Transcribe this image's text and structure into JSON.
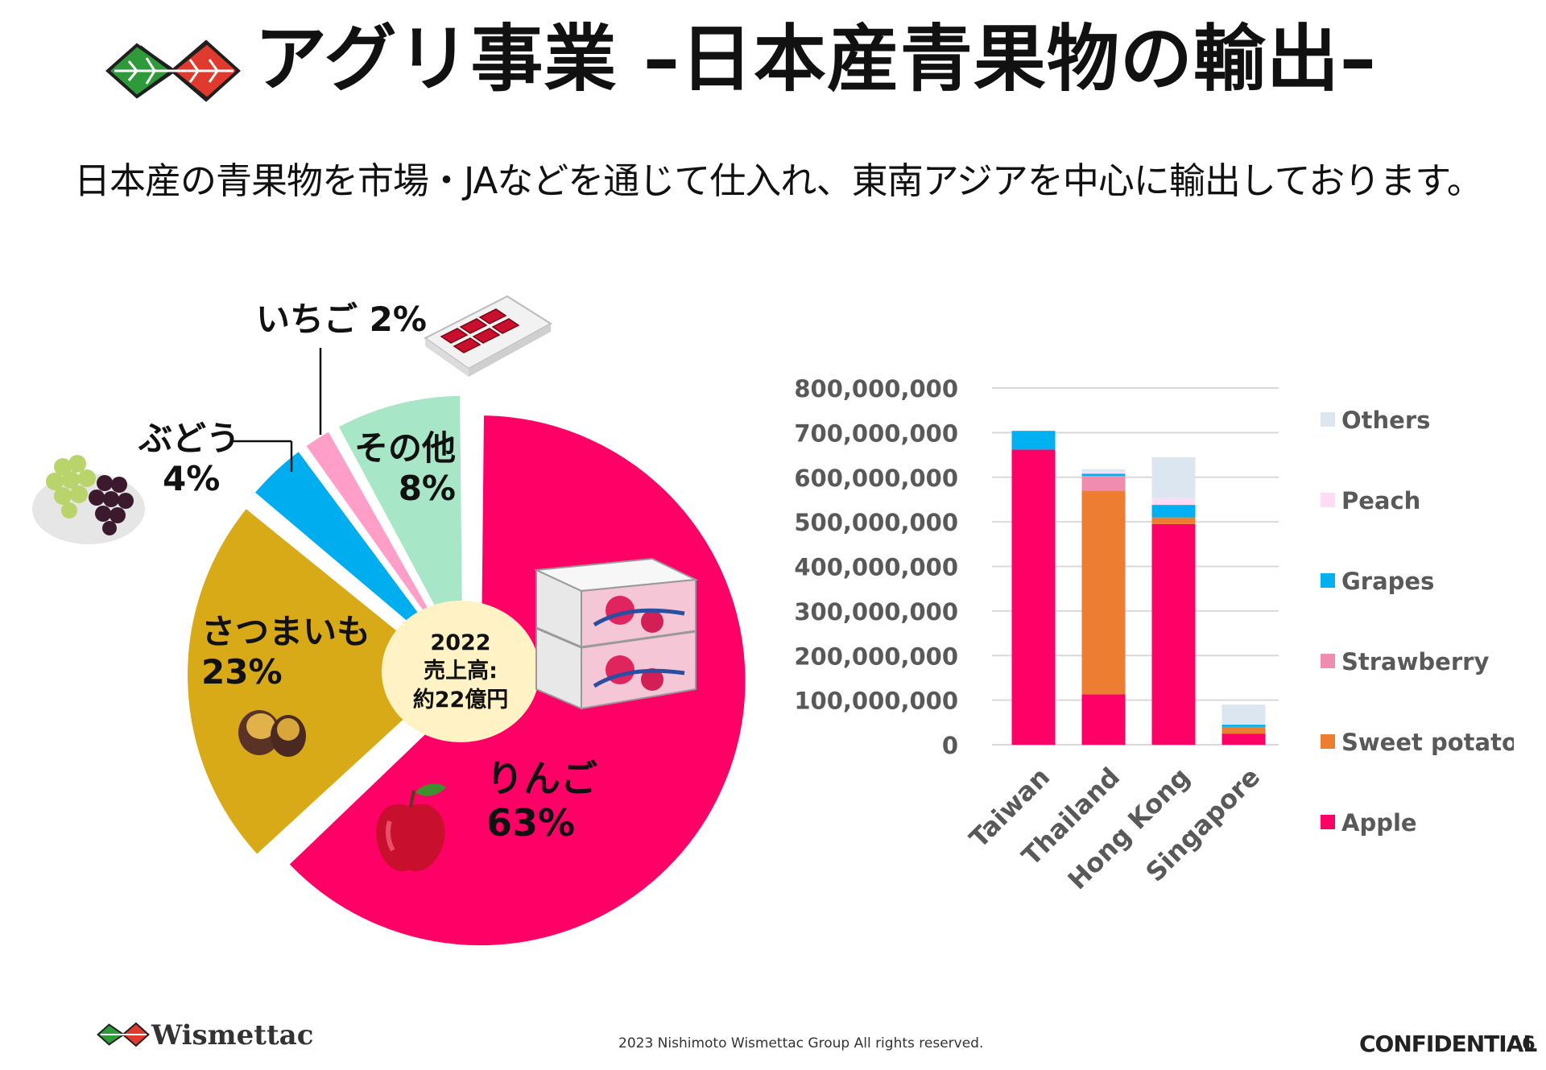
{
  "header": {
    "title": "アグリ事業 –日本産青果物の輸出–",
    "subtitle": "日本産の青果物を市場・JAなどを通じて仕入れ、東南アジアを中心に輸出しております。"
  },
  "pie": {
    "center_lines": [
      "2022",
      "売上高:",
      "約22億円"
    ],
    "slices": [
      {
        "key": "apple",
        "name": "りんご",
        "pct_label": "63%",
        "value": 63,
        "color": "#ff0066"
      },
      {
        "key": "sweetpotato",
        "name": "さつまいも",
        "pct_label": "23%",
        "value": 23,
        "color": "#d9aa17"
      },
      {
        "key": "grapes",
        "name": "ぶどう",
        "pct_label": "4%",
        "value": 4,
        "color": "#00aeef"
      },
      {
        "key": "strawberry",
        "name": "いちご",
        "pct_label": "2%",
        "value": 2,
        "color": "#ff9ec8"
      },
      {
        "key": "other",
        "name": "その他",
        "pct_label": "8%",
        "value": 8,
        "color": "#a8e6c8"
      }
    ]
  },
  "chart_data": [
    {
      "type": "pie",
      "categories": [
        "りんご",
        "さつまいも",
        "ぶどう",
        "いちご",
        "その他"
      ],
      "values": [
        63,
        23,
        4,
        2,
        8
      ],
      "center_text": [
        "2022",
        "売上高:",
        "約22億円"
      ]
    },
    {
      "type": "bar",
      "stacked": true,
      "categories": [
        "Taiwan",
        "Thailand",
        "Hong Kong",
        "Singapore"
      ],
      "ylim": [
        0,
        800000000
      ],
      "yticks": [
        0,
        100000000,
        200000000,
        300000000,
        400000000,
        500000000,
        600000000,
        700000000,
        800000000
      ],
      "ytick_labels": [
        "0",
        "100,000,000",
        "200,000,000",
        "300,000,000",
        "400,000,000",
        "500,000,000",
        "600,000,000",
        "700,000,000",
        "800,000,000"
      ],
      "grid": true,
      "legend_position": "right",
      "series": [
        {
          "name": "Apple",
          "color": "#ff0066",
          "values": [
            662000000,
            113000000,
            495000000,
            25000000
          ]
        },
        {
          "name": "Sweet potato",
          "color": "#ed7d31",
          "values": [
            0,
            457000000,
            15000000,
            15000000
          ]
        },
        {
          "name": "Strawberry",
          "color": "#f08cb0",
          "values": [
            0,
            33000000,
            0,
            0
          ]
        },
        {
          "name": "Grapes",
          "color": "#00b0f0",
          "values": [
            42000000,
            5000000,
            28000000,
            5000000
          ]
        },
        {
          "name": "Peach",
          "color": "#fddcf4",
          "values": [
            0,
            5000000,
            15000000,
            0
          ]
        },
        {
          "name": "Others",
          "color": "#dce6f1",
          "values": [
            0,
            5000000,
            92000000,
            45000000
          ]
        }
      ],
      "legend_order": [
        "Others",
        "Peach",
        "Grapes",
        "Strawberry",
        "Sweet potato",
        "Apple"
      ]
    }
  ],
  "footer": {
    "brand": "Wismettac",
    "copyright": "2023 Nishimoto Wismettac Group All rights reserved.",
    "confidential": "CONFIDENTIAL",
    "page_number": "6"
  },
  "icons": {
    "logo": "leaf-logo-icon",
    "photos": [
      "strawberry-pack-photo",
      "grapes-photo",
      "apple-box-photo",
      "sweet-potato-photo",
      "apple-photo"
    ]
  }
}
